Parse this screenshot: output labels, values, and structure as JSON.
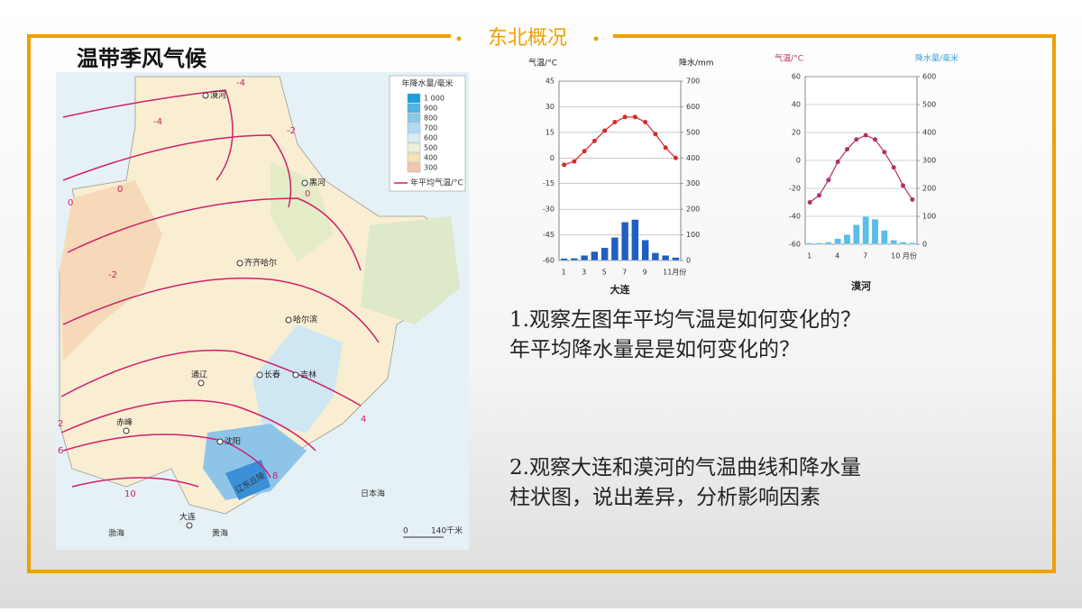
{
  "header": {
    "section": "东北概况",
    "heading": "温带季风气候"
  },
  "questions": [
    "1.观察左图年平均气温是如何变化的？",
    "年平均降水量是是如何变化的？",
    "2.观察大连和漠河的气温曲线和降水量",
    "柱状图，说出差异，分析影响因素"
  ],
  "map": {
    "legend": {
      "title": "年降水量/毫米",
      "entries": [
        "1 000",
        "900",
        "800",
        "700",
        "600",
        "500",
        "400",
        "300"
      ],
      "isotherm": "年平均气温/°C"
    },
    "cities": [
      "漠河",
      "黑河",
      "齐齐哈尔",
      "哈尔滨",
      "通辽",
      "长春",
      "吉林",
      "赤峰",
      "沈阳",
      "大连"
    ],
    "features": [
      "辽东丘陵",
      "日本海",
      "渤海",
      "黄海"
    ],
    "isotherm_labels": [
      "-4",
      "-4",
      "-2",
      "0",
      "0",
      "0",
      "-2",
      "2",
      "4",
      "6",
      "8",
      "10"
    ],
    "scale": [
      "0",
      "140千米"
    ]
  },
  "chart_data": [
    {
      "type": "combo",
      "caption": "大连",
      "y_label": "气温/°C",
      "y2_label": "降水/mm",
      "categories": [
        "1",
        null,
        "3",
        null,
        "5",
        null,
        "7",
        null,
        "9",
        null,
        "11月份",
        null
      ],
      "series": [
        {
          "name": "气温",
          "color": "#d42a2a",
          "values": [
            -4,
            -2,
            4,
            10,
            16,
            21,
            24,
            24,
            21,
            14,
            6,
            0
          ]
        },
        {
          "name": "降水",
          "color": "#1f5fbf",
          "axis": "y2",
          "values": [
            8,
            9,
            20,
            35,
            50,
            90,
            150,
            160,
            80,
            30,
            20,
            12
          ]
        }
      ],
      "ylim": [
        -60,
        45
      ],
      "yticks": [
        -60,
        -45,
        -30,
        -15,
        0,
        15,
        30,
        45
      ],
      "y2lim": [
        0,
        700
      ],
      "y2ticks": [
        0,
        100,
        200,
        300,
        400,
        500,
        600,
        700
      ],
      "grid": true
    },
    {
      "type": "combo",
      "caption": "漠河",
      "y_label": "气温/°C",
      "y2_label": "降水量/毫米",
      "categories": [
        "1",
        null,
        null,
        "4",
        null,
        null,
        "7",
        null,
        null,
        "10 月份",
        null,
        null
      ],
      "series": [
        {
          "name": "气温",
          "color": "#b0306a",
          "values": [
            -30,
            -25,
            -14,
            -1,
            8,
            15,
            18,
            15,
            6,
            -5,
            -18,
            -28
          ]
        },
        {
          "name": "降水量",
          "color": "#5bbde8",
          "axis": "y2",
          "values": [
            5,
            5,
            8,
            20,
            35,
            70,
            100,
            90,
            50,
            15,
            8,
            6
          ]
        }
      ],
      "ylim": [
        -60,
        60
      ],
      "yticks": [
        -60,
        -40,
        -20,
        0,
        20,
        40,
        60
      ],
      "y2lim": [
        0,
        600
      ],
      "y2ticks": [
        0,
        100,
        200,
        300,
        400,
        500,
        600
      ],
      "grid": true
    }
  ]
}
